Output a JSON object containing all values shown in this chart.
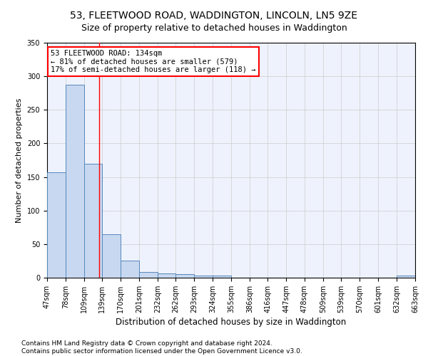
{
  "title": "53, FLEETWOOD ROAD, WADDINGTON, LINCOLN, LN5 9ZE",
  "subtitle": "Size of property relative to detached houses in Waddington",
  "xlabel": "Distribution of detached houses by size in Waddington",
  "ylabel": "Number of detached properties",
  "bin_edges": [
    47,
    78,
    109,
    139,
    170,
    201,
    232,
    262,
    293,
    324,
    355,
    386,
    416,
    447,
    478,
    509,
    539,
    570,
    601,
    632,
    663
  ],
  "bar_heights": [
    157,
    287,
    170,
    65,
    25,
    9,
    6,
    5,
    3,
    3,
    0,
    0,
    0,
    0,
    0,
    0,
    0,
    0,
    0,
    3
  ],
  "bar_color": "#c8d8f0",
  "bar_edge_color": "#5588bb",
  "bar_alpha": 1.0,
  "red_line_x": 134,
  "annotation_line1": "53 FLEETWOOD ROAD: 134sqm",
  "annotation_line2": "← 81% of detached houses are smaller (579)",
  "annotation_line3": "17% of semi-detached houses are larger (118) →",
  "annotation_box_color": "white",
  "annotation_box_edge_color": "red",
  "red_line_color": "red",
  "grid_color": "#cccccc",
  "background_color": "#eef2fc",
  "ylim": [
    0,
    350
  ],
  "yticks": [
    0,
    50,
    100,
    150,
    200,
    250,
    300,
    350
  ],
  "footnote": "Contains HM Land Registry data © Crown copyright and database right 2024.\nContains public sector information licensed under the Open Government Licence v3.0.",
  "title_fontsize": 10,
  "subtitle_fontsize": 9,
  "xlabel_fontsize": 8.5,
  "ylabel_fontsize": 8,
  "tick_fontsize": 7,
  "annotation_fontsize": 7.5,
  "footnote_fontsize": 6.5
}
